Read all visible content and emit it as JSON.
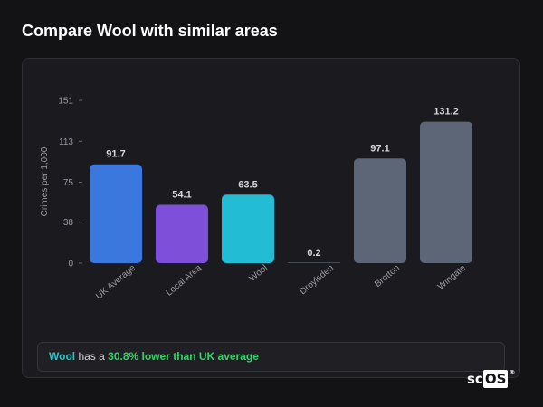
{
  "page": {
    "title": "Compare Wool with similar areas"
  },
  "summary": {
    "place": "Wool",
    "text": "has a",
    "delta": "30.8% lower than UK average"
  },
  "brand": {
    "prefix": "sc",
    "boxed": "OS",
    "mark": "®"
  },
  "chart_data": {
    "type": "bar",
    "title": "",
    "xlabel": "",
    "ylabel": "Crimes per 1,000",
    "ylim": [
      0,
      151
    ],
    "yticks": [
      0,
      38,
      75,
      113,
      151
    ],
    "grid": false,
    "categories": [
      "UK Average",
      "Local Area",
      "Wool",
      "Droylsden",
      "Brotton",
      "Wingate"
    ],
    "values": [
      91.7,
      54.1,
      63.5,
      0.2,
      97.1,
      131.2
    ],
    "value_labels": [
      "91.7",
      "54.1",
      "63.5",
      "0.2",
      "97.1",
      "131.2"
    ],
    "colors": [
      "#3a78dd",
      "#7e4fd8",
      "#22bcd4",
      "#5d6676",
      "#5d6676",
      "#5d6676"
    ]
  }
}
